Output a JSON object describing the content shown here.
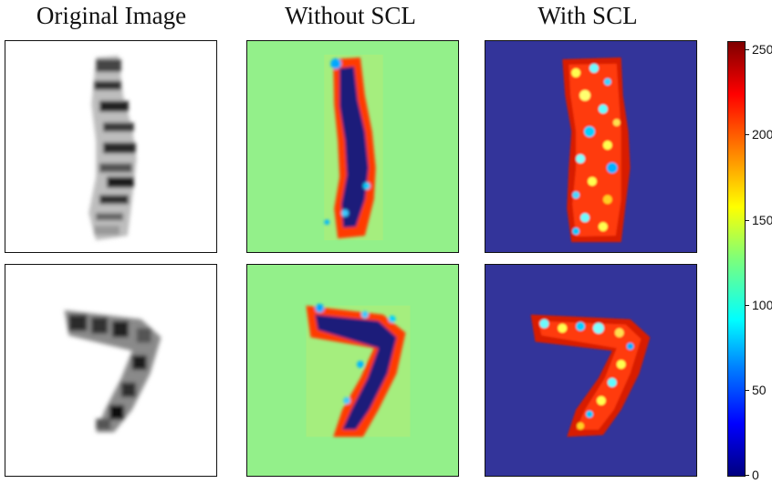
{
  "columns": [
    {
      "title": "Original Image"
    },
    {
      "title": "Without SCL"
    },
    {
      "title": "With SCL"
    }
  ],
  "colorbar": {
    "ticks": [
      "0",
      "50",
      "100",
      "150",
      "200",
      "250"
    ],
    "range": [
      0,
      255
    ],
    "colormap": "jet"
  },
  "colors": {
    "without_scl_background": "#93f08a",
    "with_scl_background": "#33349a",
    "stroke_dark": "#1a1a7a",
    "stroke_edge": "#ff2a00"
  }
}
